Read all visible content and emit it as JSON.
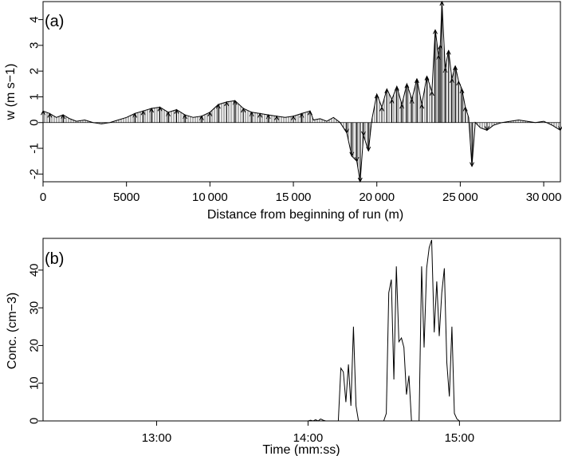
{
  "chart_data": [
    {
      "panel_label": "(a)",
      "type": "line",
      "xlabel": "Distance from beginning of run (m)",
      "ylabel": "w (m s−1)",
      "xlim": [
        0,
        31000
      ],
      "ylim": [
        -2.3,
        4.7
      ],
      "x_ticks": [
        0,
        5000,
        10000,
        15000,
        20000,
        25000,
        30000
      ],
      "x_tick_labels": [
        "0",
        "5000",
        "10 000",
        "15 000",
        "20 000",
        "25 000",
        "30 000"
      ],
      "y_ticks": [
        -2,
        -1,
        0,
        1,
        2,
        3,
        4
      ],
      "y_tick_labels": [
        "-2",
        "-1",
        "0",
        "1",
        "2",
        "3",
        "4"
      ],
      "grid": false,
      "style": "vertical arrows from w = 0 to each sample, joined by a line",
      "x": [
        0,
        400,
        800,
        1200,
        1600,
        2000,
        2500,
        3000,
        3500,
        4000,
        4500,
        5000,
        5500,
        6000,
        6500,
        7000,
        7500,
        8000,
        8500,
        9000,
        9500,
        10000,
        10500,
        11000,
        11500,
        12000,
        12500,
        13000,
        13500,
        14000,
        14500,
        15000,
        15500,
        16000,
        16200,
        16600,
        17000,
        17400,
        17800,
        18200,
        18500,
        18800,
        19000,
        19200,
        19500,
        19700,
        20000,
        20300,
        20600,
        20900,
        21200,
        21500,
        21800,
        22100,
        22400,
        22700,
        23000,
        23300,
        23500,
        23700,
        23800,
        23900,
        24100,
        24300,
        24500,
        24700,
        24900,
        25100,
        25300,
        25500,
        25700,
        25900,
        26200,
        26600,
        27000,
        27500,
        28000,
        28500,
        29000,
        29500,
        30000,
        30500,
        31000
      ],
      "y": [
        0.45,
        0.35,
        0.2,
        0.3,
        0.15,
        0.05,
        0.1,
        0.0,
        -0.05,
        0.0,
        0.1,
        0.2,
        0.35,
        0.45,
        0.55,
        0.6,
        0.4,
        0.5,
        0.3,
        0.2,
        0.25,
        0.4,
        0.7,
        0.8,
        0.85,
        0.55,
        0.4,
        0.35,
        0.3,
        0.25,
        0.2,
        0.25,
        0.35,
        0.45,
        0.1,
        0.15,
        0.05,
        0.2,
        0.0,
        -0.4,
        -1.3,
        -1.5,
        -2.3,
        -0.5,
        -1.1,
        0.1,
        1.1,
        0.6,
        1.3,
        0.9,
        1.4,
        0.7,
        1.5,
        0.9,
        1.7,
        0.7,
        1.8,
        1.2,
        3.6,
        2.6,
        3.0,
        4.7,
        2.1,
        2.8,
        1.7,
        2.2,
        1.6,
        1.3,
        0.6,
        0.2,
        -1.7,
        0.0,
        -0.2,
        -0.3,
        -0.1,
        0.0,
        0.05,
        0.1,
        0.05,
        0.0,
        0.05,
        -0.1,
        -0.3
      ]
    },
    {
      "panel_label": "(b)",
      "type": "line",
      "xlabel": "Time (mm:ss)",
      "ylabel": "Conc. (cm−3)",
      "xlim": [
        "12:15",
        "15:40"
      ],
      "ylim": [
        0,
        48
      ],
      "x_ticks": [
        "13:00",
        "14:00",
        "15:00"
      ],
      "x_tick_labels": [
        "13:00",
        "14:00",
        "15:00"
      ],
      "y_ticks": [
        0,
        10,
        20,
        30,
        40
      ],
      "y_tick_labels": [
        "0",
        "10",
        "20",
        "30",
        "40"
      ],
      "grid": false,
      "x": [
        "12:50",
        "14:00",
        "14:01",
        "14:02",
        "14:03",
        "14:04",
        "14:05",
        "14:06",
        "14:07",
        "14:08",
        "14:10",
        "14:12",
        "14:13",
        "14:14",
        "14:15",
        "14:16",
        "14:17",
        "14:18",
        "14:19",
        "14:20",
        "14:21",
        "14:22",
        "14:23",
        "14:24",
        "14:25",
        "14:26",
        "14:27",
        "14:28",
        "14:29",
        "14:30",
        "14:31",
        "14:32",
        "14:33",
        "14:34",
        "14:35",
        "14:36",
        "14:37",
        "14:38",
        "14:39",
        "14:40",
        "14:41",
        "14:42",
        "14:43",
        "14:44",
        "14:45",
        "14:46",
        "14:47",
        "14:48",
        "14:49",
        "14:50",
        "14:51",
        "14:52",
        "14:53",
        "14:54",
        "14:55",
        "14:56",
        "14:57",
        "14:58",
        "14:59",
        "15:00",
        "15:01",
        "15:02",
        "15:03",
        "15:04",
        "15:05"
      ],
      "y": [
        0,
        0,
        0.2,
        0,
        0.3,
        0,
        0.5,
        0.2,
        0,
        0,
        0,
        0,
        14,
        13,
        5,
        15,
        4,
        25,
        4,
        0,
        0,
        0,
        0,
        0,
        0,
        0,
        0,
        0,
        0,
        0,
        2,
        34,
        37.5,
        11,
        41,
        21,
        22,
        19.5,
        7,
        12,
        0,
        0,
        0,
        0,
        41,
        19.5,
        40.5,
        46,
        48,
        23.5,
        37,
        22.5,
        34,
        40.5,
        15.5,
        6.5,
        25,
        2,
        0.5,
        0,
        0,
        0,
        0,
        0,
        0
      ]
    }
  ]
}
